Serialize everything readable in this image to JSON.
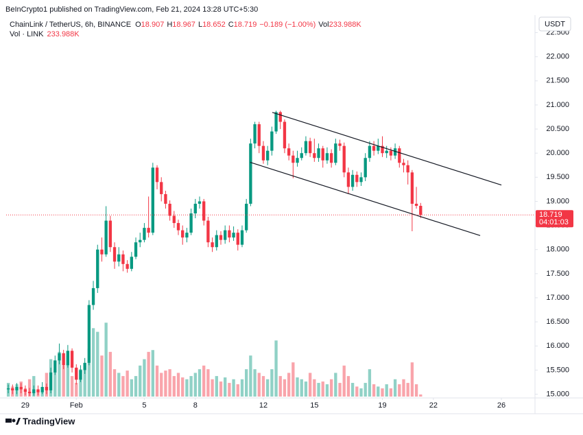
{
  "chart_data": {
    "type": "candlestick",
    "published": "BeInCrypto1 published on TradingView.com, Feb 21, 2024 13:28 UTC+5:30",
    "symbol": "ChainLink / TetherUS, 6h, BINANCE",
    "o_label": "O",
    "h_label": "H",
    "l_label": "L",
    "c_label": "C",
    "change": "−0.189 (−1.00%)",
    "vol_label": "Vol",
    "vol_line": "Vol · LINK",
    "vol_value": "233.988K",
    "currency": "USDT",
    "countdown": "04:01:03",
    "brand": "TradingView",
    "up_color": "#089981",
    "down_color": "#f23645",
    "volume_up_color": "rgba(8,153,129,0.45)",
    "volume_down_color": "rgba(242,54,69,0.45)",
    "grid": false,
    "xlim": [
      -0.5,
      123.9
    ],
    "xticks": [
      {
        "value": 4,
        "label": "29"
      },
      {
        "value": 16,
        "label": "Feb"
      },
      {
        "value": 32,
        "label": "5"
      },
      {
        "value": 44,
        "label": "8"
      },
      {
        "value": 60,
        "label": "12"
      },
      {
        "value": 72,
        "label": "15"
      },
      {
        "value": 88,
        "label": "19"
      },
      {
        "value": 100,
        "label": "22"
      },
      {
        "value": 116,
        "label": "26"
      }
    ],
    "ylim": [
      14.95,
      22.75
    ],
    "yticks": [
      {
        "value": 15,
        "label": "15.000"
      },
      {
        "value": 15.5,
        "label": "15.500"
      },
      {
        "value": 16,
        "label": "16.000"
      },
      {
        "value": 16.5,
        "label": "16.500"
      },
      {
        "value": 17,
        "label": "17.000"
      },
      {
        "value": 17.5,
        "label": "17.500"
      },
      {
        "value": 18,
        "label": "18.000"
      },
      {
        "value": 18.5,
        "label": "18.500"
      },
      {
        "value": 19,
        "label": "19.000"
      },
      {
        "value": 19.5,
        "label": "19.500"
      },
      {
        "value": 20,
        "label": "20.000"
      },
      {
        "value": 20.5,
        "label": "20.500"
      },
      {
        "value": 21,
        "label": "21.000"
      },
      {
        "value": 21.5,
        "label": "21.500"
      },
      {
        "value": 22,
        "label": "22.000"
      },
      {
        "value": 22.5,
        "label": "22.500"
      }
    ],
    "volume_lim": [
      0,
      8500
    ],
    "open": [
      15.1,
      15.12,
      15.08,
      15.15,
      15.1,
      15.05,
      15.02,
      15.1,
      15.04,
      15.15,
      15.08,
      15.45,
      15.7,
      15.85,
      15.6,
      15.9,
      15.55,
      15.3,
      15.5,
      15.65,
      16.85,
      17.2,
      18.0,
      17.9,
      18.6,
      18.05,
      17.75,
      17.9,
      17.7,
      17.6,
      17.85,
      18.15,
      18.2,
      18.45,
      18.35,
      19.7,
      19.4,
      19.15,
      18.95,
      18.7,
      18.55,
      18.4,
      18.25,
      18.35,
      18.75,
      18.95,
      19.0,
      18.6,
      18.15,
      18.05,
      18.3,
      18.2,
      18.4,
      18.25,
      18.35,
      18.1,
      18.4,
      18.95,
      20.2,
      20.6,
      20.15,
      19.85,
      20.05,
      20.45,
      20.85,
      20.65,
      20.1,
      19.95,
      19.8,
      19.9,
      20.0,
      20.25,
      20.0,
      19.9,
      20.1,
      19.85,
      20.0,
      19.8,
      20.2,
      20.15,
      19.6,
      19.3,
      19.55,
      19.4,
      19.5,
      19.9,
      20.15,
      20.05,
      20.15,
      20.0,
      20.05,
      19.95,
      20.1,
      19.8,
      19.75,
      19.6,
      18.95,
      18.907
    ],
    "high": [
      15.2,
      15.2,
      15.23,
      15.23,
      15.18,
      15.13,
      15.18,
      15.18,
      15.25,
      15.22,
      15.55,
      15.8,
      16.05,
      15.92,
      16.02,
      15.95,
      15.62,
      15.6,
      15.75,
      16.95,
      17.35,
      18.1,
      18.25,
      18.9,
      18.7,
      18.15,
      18.05,
      17.98,
      17.78,
      17.95,
      18.25,
      18.35,
      18.55,
      19.1,
      19.8,
      19.75,
      19.5,
      19.22,
      19.02,
      18.8,
      18.62,
      18.5,
      18.45,
      18.85,
      19.05,
      19.1,
      19.05,
      18.68,
      18.25,
      18.4,
      18.38,
      18.5,
      18.5,
      18.48,
      18.42,
      18.5,
      19.05,
      20.3,
      20.65,
      20.65,
      20.25,
      20.15,
      20.55,
      20.88,
      20.88,
      20.7,
      20.2,
      20.05,
      20.05,
      20.12,
      20.35,
      20.32,
      20.3,
      20.2,
      20.15,
      20.12,
      20.08,
      20.3,
      20.28,
      20.22,
      19.7,
      19.65,
      19.62,
      19.6,
      20.0,
      20.25,
      20.25,
      20.3,
      20.35,
      20.15,
      20.12,
      20.2,
      20.15,
      19.88,
      19.85,
      19.65,
      19.3,
      18.967
    ],
    "low": [
      15.02,
      15.0,
      15.0,
      15.02,
      14.98,
      14.96,
      14.97,
      14.98,
      15.0,
      15.0,
      15.02,
      15.4,
      15.62,
      15.52,
      15.55,
      15.45,
      15.2,
      15.25,
      15.42,
      15.6,
      16.75,
      17.1,
      17.75,
      17.85,
      17.95,
      17.6,
      17.65,
      17.55,
      17.52,
      17.55,
      17.8,
      18.05,
      18.15,
      18.25,
      18.3,
      19.25,
      19.0,
      18.85,
      18.6,
      18.45,
      18.3,
      18.1,
      18.15,
      18.3,
      18.65,
      18.85,
      18.5,
      18.05,
      17.95,
      17.98,
      18.1,
      18.12,
      18.15,
      18.18,
      17.98,
      18.05,
      18.35,
      18.9,
      20.1,
      20.0,
      19.78,
      19.75,
      19.95,
      20.4,
      20.5,
      20.0,
      19.85,
      19.48,
      19.72,
      19.85,
      19.95,
      19.92,
      19.82,
      19.82,
      19.7,
      19.78,
      19.7,
      19.75,
      20.05,
      19.5,
      19.15,
      19.22,
      19.3,
      19.32,
      19.42,
      19.82,
      19.95,
      19.98,
      19.92,
      19.9,
      19.85,
      19.88,
      19.7,
      19.6,
      19.35,
      18.38,
      18.85,
      18.652
    ],
    "close": [
      15.12,
      15.08,
      15.15,
      15.1,
      15.05,
      15.02,
      15.1,
      15.04,
      15.15,
      15.08,
      15.45,
      15.7,
      15.85,
      15.6,
      15.9,
      15.55,
      15.3,
      15.5,
      15.65,
      16.85,
      17.2,
      18.0,
      17.9,
      18.6,
      18.05,
      17.75,
      17.9,
      17.7,
      17.6,
      17.85,
      18.15,
      18.2,
      18.45,
      18.35,
      19.7,
      19.4,
      19.15,
      18.95,
      18.7,
      18.55,
      18.4,
      18.25,
      18.35,
      18.75,
      18.95,
      19.0,
      18.6,
      18.15,
      18.05,
      18.3,
      18.2,
      18.4,
      18.25,
      18.35,
      18.1,
      18.4,
      18.95,
      20.2,
      20.6,
      20.15,
      19.85,
      20.05,
      20.45,
      20.85,
      20.65,
      20.1,
      19.95,
      19.8,
      19.9,
      20.0,
      20.25,
      20.0,
      19.9,
      20.1,
      19.85,
      20.0,
      19.8,
      20.2,
      20.15,
      19.6,
      19.3,
      19.55,
      19.4,
      19.5,
      19.9,
      20.15,
      20.05,
      20.15,
      20.0,
      20.05,
      19.95,
      20.1,
      19.8,
      19.75,
      19.6,
      18.95,
      18.907,
      18.719
    ],
    "volume": [
      1500,
      1100,
      1350,
      1650,
      900,
      1900,
      2250,
      600,
      900,
      2600,
      4100,
      3000,
      4900,
      3400,
      4500,
      2250,
      1500,
      3000,
      3400,
      5250,
      7500,
      7100,
      4500,
      8100,
      4900,
      3000,
      2600,
      2250,
      2850,
      1900,
      2250,
      3400,
      4100,
      4900,
      5100,
      3400,
      2600,
      2850,
      3000,
      2250,
      2600,
      2100,
      1900,
      2250,
      2600,
      3000,
      3400,
      3000,
      1900,
      2250,
      1650,
      2100,
      1500,
      1900,
      1350,
      1900,
      3000,
      4500,
      3000,
      2600,
      2250,
      1900,
      3000,
      6150,
      2250,
      1900,
      2600,
      3750,
      2100,
      1900,
      1650,
      2600,
      1900,
      1500,
      1650,
      1350,
      1900,
      2600,
      1500,
      3400,
      2250,
      1500,
      1100,
      900,
      1500,
      3000,
      1350,
      1100,
      900,
      1350,
      900,
      1900,
      1350,
      1900,
      1500,
      3750,
      1350,
      233.988
    ],
    "trendlines": [
      {
        "x": [
          62.1,
          116
        ],
        "y": [
          20.846,
          19.339
        ]
      },
      {
        "x": [
          56.9,
          111
        ],
        "y": [
          19.81,
          18.29
        ]
      }
    ]
  }
}
